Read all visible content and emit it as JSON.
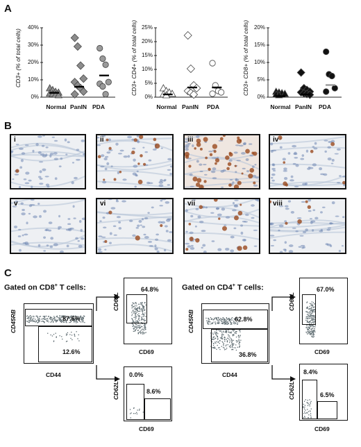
{
  "panel_labels": {
    "a": "A",
    "b": "B",
    "c": "C"
  },
  "chart_data": [
    {
      "type": "scatter",
      "ylabel": "CD3+ (% of total cells)",
      "yticks": [
        "0%",
        "10%",
        "20%",
        "30%",
        "40%"
      ],
      "ylim": [
        0,
        40
      ],
      "categories": [
        "Normal",
        "PanIN",
        "PDA"
      ],
      "marker_colors": {
        "Normal": "#8c8c8c",
        "PanIN": "#8c8c8c",
        "PDA": "#9a9a9a"
      },
      "points": {
        "Normal": [
          4.0,
          3.0,
          2.0,
          1.5,
          1.0,
          0.6,
          0.3,
          0.0
        ],
        "PanIN": [
          33.0,
          28.0,
          17.0,
          9.5,
          7.5,
          5.5,
          4.0,
          2.0,
          0.5
        ],
        "PDA": [
          27.0,
          21.0,
          17.5,
          7.5,
          6.5,
          5.0,
          0.5
        ]
      },
      "means": {
        "Normal": 2.5,
        "PanIN": 6.0,
        "PDA": 12.5
      }
    },
    {
      "type": "scatter",
      "ylabel": "CD3+ CD4+ (% of total cells)",
      "yticks": [
        "0%",
        "5%",
        "10%",
        "15%",
        "20%",
        "25%"
      ],
      "ylim": [
        0,
        25
      ],
      "categories": [
        "Normal",
        "PanIN",
        "PDA"
      ],
      "marker_colors": {
        "Normal": "#ffffff",
        "PanIN": "#ffffff",
        "PDA": "#ffffff"
      },
      "points": {
        "Normal": [
          2.5,
          1.5,
          1.0,
          0.5,
          0.3,
          0.0
        ],
        "PanIN": [
          21.5,
          9.5,
          3.5,
          2.5,
          1.5,
          0.8,
          0.2
        ],
        "PDA": [
          11.5,
          3.5,
          1.5,
          1.0,
          0.5
        ]
      },
      "means": {
        "Normal": 1.0,
        "PanIN": 3.5,
        "PDA": 3.5
      }
    },
    {
      "type": "scatter",
      "ylabel": "CD3+ CD8+ (% of total cells)",
      "yticks": [
        "0%",
        "5%",
        "10%",
        "15%",
        "20%"
      ],
      "ylim": [
        0,
        20
      ],
      "categories": [
        "Normal",
        "PanIN",
        "PDA"
      ],
      "marker_colors": {
        "Normal": "#111111",
        "PanIN": "#111111",
        "PDA": "#111111"
      },
      "points": {
        "Normal": [
          1.0,
          0.8,
          0.6,
          0.4,
          0.2,
          0.0
        ],
        "PanIN": [
          6.5,
          2.0,
          1.5,
          1.0,
          0.8,
          0.5,
          0.3,
          0.1
        ],
        "PDA": [
          12.5,
          6.0,
          5.5,
          2.0,
          1.0
        ]
      },
      "means": {
        "Normal": 0.3,
        "PanIN": 0.8,
        "PDA": 3.5
      }
    }
  ],
  "micrographs": {
    "labels": [
      "i",
      "ii",
      "iii",
      "iv",
      "v",
      "vi",
      "vii",
      "viii"
    ],
    "stain_level": [
      0.02,
      0.25,
      0.7,
      0.12,
      0.0,
      0.06,
      0.22,
      0.08
    ]
  },
  "flow": {
    "cd8": {
      "title": "Gated on CD8",
      "title_sup": "+",
      "title_tail": " T cells:",
      "main": {
        "x_label": "CD44",
        "y_label": "CD45RB",
        "upper_pct": "87.6%",
        "lower_pct": "12.6%"
      },
      "upper_gate": {
        "x_label": "CD69",
        "y_label": "CD62L",
        "pct": "64.8%"
      },
      "lower_gate": {
        "x_label": "CD69",
        "y_label": "CD62L",
        "left_pct": "0.0%",
        "right_pct": "8.6%"
      }
    },
    "cd4": {
      "title": "Gated on CD4",
      "title_sup": "+",
      "title_tail": " T cells:",
      "main": {
        "x_label": "CD44",
        "y_label": "CD45RB",
        "upper_pct": "62.8%",
        "lower_pct": "36.8%"
      },
      "upper_gate": {
        "x_label": "CD69",
        "y_label": "CD62L",
        "pct": "67.0%"
      },
      "lower_gate": {
        "x_label": "CD69",
        "y_label": "CD62L",
        "left_pct": "8.4%",
        "right_pct": "6.5%"
      }
    }
  }
}
